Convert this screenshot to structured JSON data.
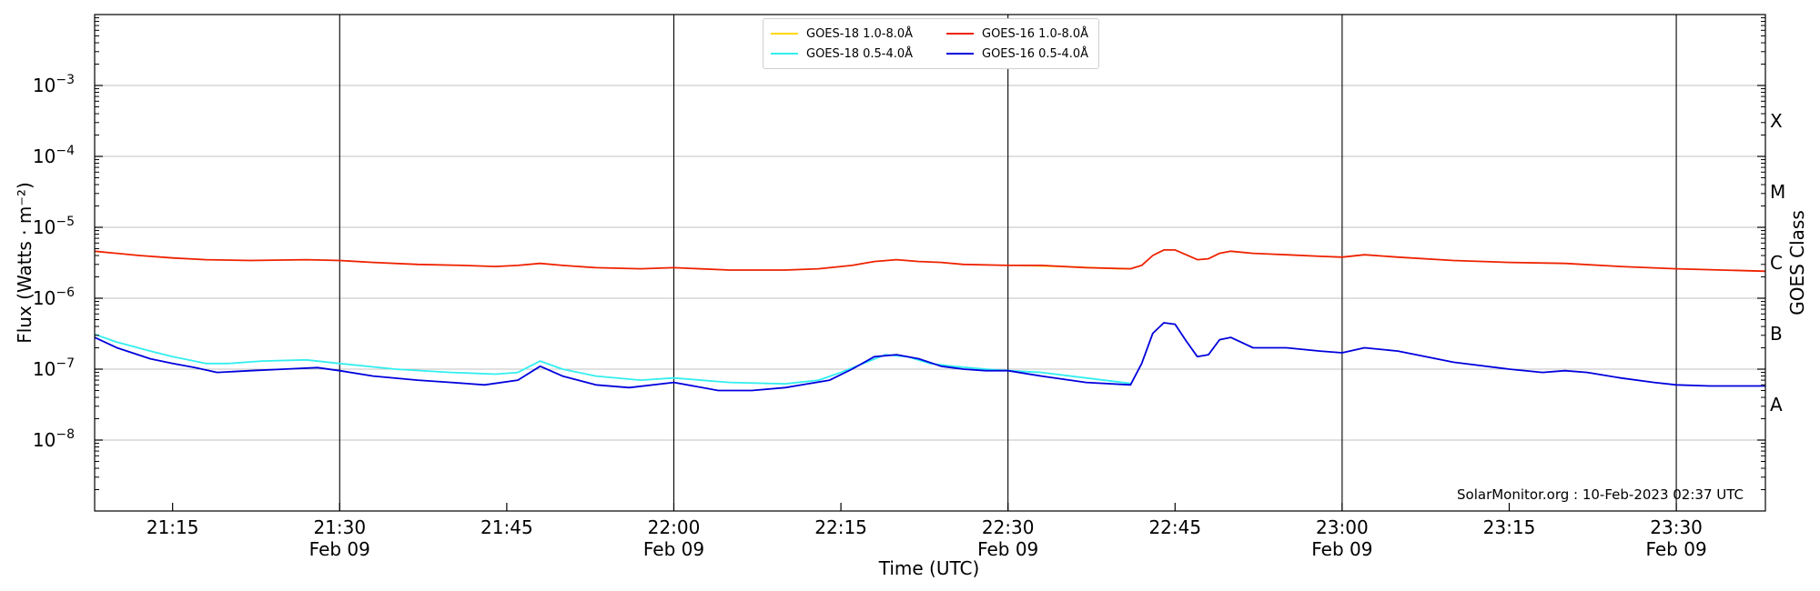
{
  "chart_data": {
    "type": "line",
    "title": "",
    "xlabel": "Time (UTC)",
    "ylabel": "Flux (Watts · m⁻²)",
    "y2label": "GOES Class",
    "yscale": "log",
    "xlim": [
      "21:08",
      "23:38"
    ],
    "ylim": [
      1e-09,
      0.01
    ],
    "grid": "horizontal at decades",
    "legend_position": "top-center",
    "x_ticks": [
      {
        "t": "21:15",
        "label": "21:15",
        "sub": ""
      },
      {
        "t": "21:30",
        "label": "21:30",
        "sub": "Feb 09"
      },
      {
        "t": "21:45",
        "label": "21:45",
        "sub": ""
      },
      {
        "t": "22:00",
        "label": "22:00",
        "sub": "Feb 09"
      },
      {
        "t": "22:15",
        "label": "22:15",
        "sub": ""
      },
      {
        "t": "22:30",
        "label": "22:30",
        "sub": "Feb 09"
      },
      {
        "t": "22:45",
        "label": "22:45",
        "sub": ""
      },
      {
        "t": "23:00",
        "label": "23:00",
        "sub": "Feb 09"
      },
      {
        "t": "23:15",
        "label": "23:15",
        "sub": ""
      },
      {
        "t": "23:30",
        "label": "23:30",
        "sub": "Feb 09"
      }
    ],
    "vertical_lines": [
      "21:30",
      "22:00",
      "22:30",
      "23:00",
      "23:30"
    ],
    "y_ticks": [
      {
        "exp": -8,
        "label": "10",
        "sup": "−8"
      },
      {
        "exp": -7,
        "label": "10",
        "sup": "−7"
      },
      {
        "exp": -6,
        "label": "10",
        "sup": "−6"
      },
      {
        "exp": -5,
        "label": "10",
        "sup": "−5"
      },
      {
        "exp": -4,
        "label": "10",
        "sup": "−4"
      },
      {
        "exp": -3,
        "label": "10",
        "sup": "−3"
      }
    ],
    "goes_classes": [
      {
        "label": "A",
        "exp": -7.5
      },
      {
        "label": "B",
        "exp": -6.5
      },
      {
        "label": "C",
        "exp": -5.5
      },
      {
        "label": "M",
        "exp": -4.5
      },
      {
        "label": "X",
        "exp": -3.5
      }
    ],
    "annotation": "SolarMonitor.org : 10-Feb-2023 02:37 UTC",
    "series": [
      {
        "name": "GOES-18 1.0-8.0Å",
        "color": "#ffd700",
        "points": [
          [
            "22:31",
            2.9e-06
          ],
          [
            "22:35",
            2.8e-06
          ],
          [
            "22:40",
            2.6e-06
          ],
          [
            "22:41",
            2.6e-06
          ]
        ]
      },
      {
        "name": "GOES-16 1.0-8.0Å",
        "color": "#ee2200",
        "points": [
          [
            "21:08",
            4.6e-06
          ],
          [
            "21:12",
            4e-06
          ],
          [
            "21:15",
            3.7e-06
          ],
          [
            "21:18",
            3.5e-06
          ],
          [
            "21:22",
            3.4e-06
          ],
          [
            "21:27",
            3.5e-06
          ],
          [
            "21:30",
            3.4e-06
          ],
          [
            "21:33",
            3.2e-06
          ],
          [
            "21:37",
            3e-06
          ],
          [
            "21:41",
            2.9e-06
          ],
          [
            "21:44",
            2.8e-06
          ],
          [
            "21:46",
            2.9e-06
          ],
          [
            "21:48",
            3.1e-06
          ],
          [
            "21:50",
            2.9e-06
          ],
          [
            "21:53",
            2.7e-06
          ],
          [
            "21:57",
            2.6e-06
          ],
          [
            "22:00",
            2.7e-06
          ],
          [
            "22:05",
            2.5e-06
          ],
          [
            "22:10",
            2.5e-06
          ],
          [
            "22:13",
            2.6e-06
          ],
          [
            "22:16",
            2.9e-06
          ],
          [
            "22:18",
            3.3e-06
          ],
          [
            "22:20",
            3.5e-06
          ],
          [
            "22:22",
            3.3e-06
          ],
          [
            "22:24",
            3.2e-06
          ],
          [
            "22:26",
            3e-06
          ],
          [
            "22:30",
            2.9e-06
          ],
          [
            "22:33",
            2.9e-06
          ],
          [
            "22:37",
            2.7e-06
          ],
          [
            "22:41",
            2.6e-06
          ],
          [
            "22:42",
            2.9e-06
          ],
          [
            "22:43",
            4e-06
          ],
          [
            "22:44",
            4.8e-06
          ],
          [
            "22:45",
            4.8e-06
          ],
          [
            "22:46",
            4.1e-06
          ],
          [
            "22:47",
            3.5e-06
          ],
          [
            "22:48",
            3.6e-06
          ],
          [
            "22:49",
            4.3e-06
          ],
          [
            "22:50",
            4.6e-06
          ],
          [
            "22:52",
            4.3e-06
          ],
          [
            "22:55",
            4.1e-06
          ],
          [
            "22:58",
            3.9e-06
          ],
          [
            "23:00",
            3.8e-06
          ],
          [
            "23:02",
            4.1e-06
          ],
          [
            "23:05",
            3.8e-06
          ],
          [
            "23:10",
            3.4e-06
          ],
          [
            "23:15",
            3.2e-06
          ],
          [
            "23:20",
            3.1e-06
          ],
          [
            "23:25",
            2.8e-06
          ],
          [
            "23:30",
            2.6e-06
          ],
          [
            "23:38",
            2.4e-06
          ]
        ]
      },
      {
        "name": "GOES-18 0.5-4.0Å",
        "color": "#33eeee",
        "points": [
          [
            "21:08",
            3.1e-07
          ],
          [
            "21:10",
            2.4e-07
          ],
          [
            "21:13",
            1.8e-07
          ],
          [
            "21:15",
            1.5e-07
          ],
          [
            "21:18",
            1.2e-07
          ],
          [
            "21:20",
            1.2e-07
          ],
          [
            "21:23",
            1.3e-07
          ],
          [
            "21:27",
            1.35e-07
          ],
          [
            "21:30",
            1.2e-07
          ],
          [
            "21:35",
            1e-07
          ],
          [
            "21:40",
            9e-08
          ],
          [
            "21:44",
            8.5e-08
          ],
          [
            "21:46",
            9e-08
          ],
          [
            "21:48",
            1.3e-07
          ],
          [
            "21:50",
            1e-07
          ],
          [
            "21:53",
            8e-08
          ],
          [
            "21:57",
            7e-08
          ],
          [
            "22:00",
            7.5e-08
          ],
          [
            "22:05",
            6.5e-08
          ],
          [
            "22:10",
            6.2e-08
          ],
          [
            "22:13",
            7e-08
          ],
          [
            "22:15",
            9e-08
          ],
          [
            "22:17",
            1.2e-07
          ],
          [
            "22:19",
            1.6e-07
          ],
          [
            "22:21",
            1.5e-07
          ],
          [
            "22:23",
            1.2e-07
          ],
          [
            "22:25",
            1.1e-07
          ],
          [
            "22:28",
            1e-07
          ],
          [
            "22:30",
            9.5e-08
          ],
          [
            "22:33",
            9e-08
          ],
          [
            "22:37",
            7.5e-08
          ],
          [
            "22:41",
            6.3e-08
          ]
        ]
      },
      {
        "name": "GOES-16 0.5-4.0Å",
        "color": "#0000dd",
        "points": [
          [
            "21:08",
            2.8e-07
          ],
          [
            "21:10",
            2e-07
          ],
          [
            "21:13",
            1.4e-07
          ],
          [
            "21:15",
            1.2e-07
          ],
          [
            "21:17",
            1.05e-07
          ],
          [
            "21:19",
            9e-08
          ],
          [
            "21:22",
            9.5e-08
          ],
          [
            "21:25",
            1e-07
          ],
          [
            "21:28",
            1.05e-07
          ],
          [
            "21:30",
            9.5e-08
          ],
          [
            "21:33",
            8e-08
          ],
          [
            "21:37",
            7e-08
          ],
          [
            "21:40",
            6.5e-08
          ],
          [
            "21:43",
            6e-08
          ],
          [
            "21:46",
            7e-08
          ],
          [
            "21:48",
            1.1e-07
          ],
          [
            "21:50",
            8e-08
          ],
          [
            "21:53",
            6e-08
          ],
          [
            "21:56",
            5.5e-08
          ],
          [
            "22:00",
            6.5e-08
          ],
          [
            "22:04",
            5e-08
          ],
          [
            "22:07",
            5e-08
          ],
          [
            "22:10",
            5.5e-08
          ],
          [
            "22:14",
            7e-08
          ],
          [
            "22:16",
            1e-07
          ],
          [
            "22:18",
            1.5e-07
          ],
          [
            "22:20",
            1.6e-07
          ],
          [
            "22:22",
            1.4e-07
          ],
          [
            "22:24",
            1.1e-07
          ],
          [
            "22:26",
            1e-07
          ],
          [
            "22:28",
            9.5e-08
          ],
          [
            "22:30",
            9.5e-08
          ],
          [
            "22:33",
            8e-08
          ],
          [
            "22:37",
            6.5e-08
          ],
          [
            "22:41",
            6e-08
          ],
          [
            "22:42",
            1.2e-07
          ],
          [
            "22:43",
            3.2e-07
          ],
          [
            "22:44",
            4.5e-07
          ],
          [
            "22:45",
            4.3e-07
          ],
          [
            "22:46",
            2.5e-07
          ],
          [
            "22:47",
            1.5e-07
          ],
          [
            "22:48",
            1.6e-07
          ],
          [
            "22:49",
            2.6e-07
          ],
          [
            "22:50",
            2.8e-07
          ],
          [
            "22:52",
            2e-07
          ],
          [
            "22:55",
            2e-07
          ],
          [
            "22:58",
            1.8e-07
          ],
          [
            "23:00",
            1.7e-07
          ],
          [
            "23:02",
            2e-07
          ],
          [
            "23:05",
            1.8e-07
          ],
          [
            "23:10",
            1.25e-07
          ],
          [
            "23:15",
            1e-07
          ],
          [
            "23:18",
            9e-08
          ],
          [
            "23:20",
            9.5e-08
          ],
          [
            "23:22",
            9e-08
          ],
          [
            "23:25",
            7.5e-08
          ],
          [
            "23:28",
            6.5e-08
          ],
          [
            "23:30",
            6e-08
          ],
          [
            "23:33",
            5.8e-08
          ],
          [
            "23:38",
            5.8e-08
          ]
        ]
      }
    ]
  }
}
